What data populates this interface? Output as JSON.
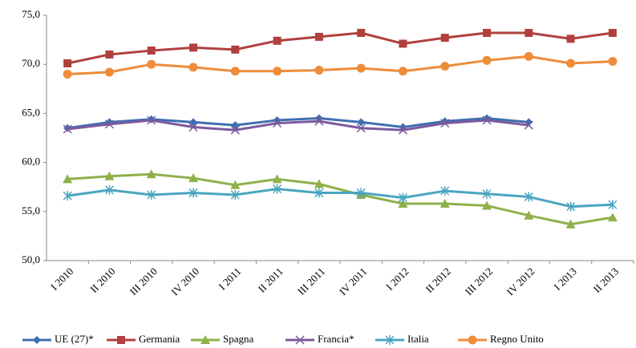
{
  "chart_data": {
    "type": "line",
    "categories": [
      "I 2010",
      "II 2010",
      "III 2010",
      "IV 2010",
      "I 2011",
      "II 2011",
      "III 2011",
      "IV 2011",
      "I 2012",
      "II 2012",
      "III 2012",
      "IV 2012",
      "I 2013",
      "II 2013"
    ],
    "ylim": [
      50,
      75
    ],
    "yticks": [
      {
        "value": 50,
        "label": "50,0"
      },
      {
        "value": 55,
        "label": "55,0"
      },
      {
        "value": 60,
        "label": "60,0"
      },
      {
        "value": 65,
        "label": "65,0"
      },
      {
        "value": 70,
        "label": "70,0"
      },
      {
        "value": 75,
        "label": "75,0"
      }
    ],
    "grid": false,
    "legend": "bottom",
    "series": [
      {
        "name": "UE (27)*",
        "color": "#3f6fb0",
        "marker": "diamond",
        "values": [
          63.5,
          64.1,
          64.4,
          64.1,
          63.8,
          64.3,
          64.5,
          64.1,
          63.6,
          64.2,
          64.5,
          64.1,
          null,
          null
        ]
      },
      {
        "name": "Germania",
        "color": "#b0403e",
        "marker": "square",
        "values": [
          70.1,
          71.0,
          71.4,
          71.7,
          71.5,
          72.4,
          72.8,
          73.2,
          72.1,
          72.7,
          73.2,
          73.2,
          72.6,
          73.2
        ]
      },
      {
        "name": "Spagna",
        "color": "#8fb04a",
        "marker": "triangle",
        "values": [
          58.3,
          58.6,
          58.8,
          58.4,
          57.7,
          58.3,
          57.8,
          56.7,
          55.8,
          55.8,
          55.6,
          54.6,
          53.7,
          54.4
        ]
      },
      {
        "name": "Francia*",
        "color": "#7c5a9f",
        "marker": "x",
        "values": [
          63.4,
          63.9,
          64.3,
          63.6,
          63.3,
          64.0,
          64.2,
          63.5,
          63.3,
          64.0,
          64.3,
          63.8,
          null,
          null
        ]
      },
      {
        "name": "Italia",
        "color": "#4aa5c0",
        "marker": "star",
        "values": [
          56.6,
          57.2,
          56.7,
          56.9,
          56.7,
          57.3,
          56.9,
          56.9,
          56.4,
          57.1,
          56.8,
          56.5,
          55.5,
          55.7
        ]
      },
      {
        "name": "Regno Unito",
        "color": "#ef8c3a",
        "marker": "circle",
        "values": [
          69.0,
          69.2,
          70.0,
          69.7,
          69.3,
          69.3,
          69.4,
          69.6,
          69.3,
          69.8,
          70.4,
          70.8,
          70.1,
          70.3
        ]
      }
    ]
  }
}
